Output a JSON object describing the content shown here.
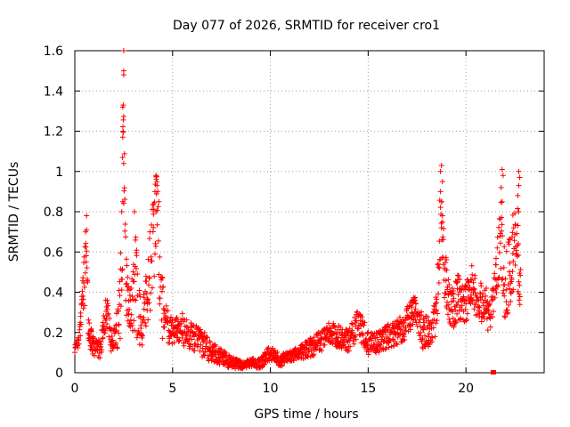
{
  "chart_data": {
    "type": "scatter",
    "title": "Day 077 of 2026, SRMTID for receiver cro1",
    "xlabel": "GPS time / hours",
    "ylabel": "SRMTID / TECUs",
    "xlim": [
      0,
      24
    ],
    "ylim": [
      0,
      1.6
    ],
    "xticks": [
      0,
      5,
      10,
      15,
      20
    ],
    "xtick_labels": [
      "0",
      "5",
      "10",
      "15",
      "20"
    ],
    "yticks": [
      0,
      0.2,
      0.4,
      0.6,
      0.8,
      1,
      1.2,
      1.4,
      1.6
    ],
    "ytick_labels": [
      "0",
      "0.2",
      "0.4",
      "0.6",
      "0.8",
      "1",
      "1.2",
      "1.4",
      "1.6"
    ],
    "grid": true,
    "marker": "+",
    "color": "#ff0000",
    "outlier": {
      "x": 21.4,
      "y": 0.0
    },
    "profile": [
      [
        0.0,
        0.12,
        0.04
      ],
      [
        0.2,
        0.14,
        0.05
      ],
      [
        0.4,
        0.4,
        0.1
      ],
      [
        0.5,
        0.45,
        0.15
      ],
      [
        0.6,
        0.6,
        0.2
      ],
      [
        0.7,
        0.2,
        0.08
      ],
      [
        1.0,
        0.12,
        0.04
      ],
      [
        1.3,
        0.12,
        0.05
      ],
      [
        1.6,
        0.3,
        0.1
      ],
      [
        1.9,
        0.15,
        0.06
      ],
      [
        2.2,
        0.22,
        0.1
      ],
      [
        2.4,
        0.5,
        0.3
      ],
      [
        2.5,
        1.2,
        0.4
      ],
      [
        2.6,
        0.5,
        0.2
      ],
      [
        2.8,
        0.3,
        0.1
      ],
      [
        3.1,
        0.45,
        0.25
      ],
      [
        3.4,
        0.2,
        0.1
      ],
      [
        3.7,
        0.38,
        0.15
      ],
      [
        4.0,
        0.6,
        0.3
      ],
      [
        4.2,
        0.85,
        0.15
      ],
      [
        4.4,
        0.35,
        0.2
      ],
      [
        4.6,
        0.25,
        0.1
      ],
      [
        5.0,
        0.2,
        0.07
      ],
      [
        5.5,
        0.22,
        0.08
      ],
      [
        6.0,
        0.17,
        0.07
      ],
      [
        6.5,
        0.15,
        0.07
      ],
      [
        7.0,
        0.1,
        0.05
      ],
      [
        7.5,
        0.08,
        0.04
      ],
      [
        8.0,
        0.05,
        0.03
      ],
      [
        8.5,
        0.04,
        0.02
      ],
      [
        9.0,
        0.05,
        0.02
      ],
      [
        9.5,
        0.05,
        0.03
      ],
      [
        10.0,
        0.1,
        0.04
      ],
      [
        10.5,
        0.06,
        0.03
      ],
      [
        11.0,
        0.08,
        0.03
      ],
      [
        11.5,
        0.1,
        0.03
      ],
      [
        12.0,
        0.12,
        0.05
      ],
      [
        12.5,
        0.15,
        0.06
      ],
      [
        13.0,
        0.2,
        0.05
      ],
      [
        13.5,
        0.18,
        0.06
      ],
      [
        14.0,
        0.16,
        0.06
      ],
      [
        14.5,
        0.25,
        0.08
      ],
      [
        15.0,
        0.15,
        0.06
      ],
      [
        15.5,
        0.15,
        0.05
      ],
      [
        16.0,
        0.18,
        0.06
      ],
      [
        16.5,
        0.2,
        0.06
      ],
      [
        17.0,
        0.25,
        0.08
      ],
      [
        17.4,
        0.32,
        0.08
      ],
      [
        17.8,
        0.2,
        0.08
      ],
      [
        18.2,
        0.2,
        0.08
      ],
      [
        18.5,
        0.3,
        0.1
      ],
      [
        18.7,
        0.8,
        0.2
      ],
      [
        18.9,
        0.5,
        0.15
      ],
      [
        19.2,
        0.3,
        0.1
      ],
      [
        19.6,
        0.38,
        0.12
      ],
      [
        20.0,
        0.35,
        0.1
      ],
      [
        20.3,
        0.45,
        0.1
      ],
      [
        20.6,
        0.35,
        0.1
      ],
      [
        21.0,
        0.35,
        0.1
      ],
      [
        21.2,
        0.25,
        0.08
      ],
      [
        21.5,
        0.45,
        0.1
      ],
      [
        21.8,
        0.75,
        0.25
      ],
      [
        22.0,
        0.4,
        0.15
      ],
      [
        22.3,
        0.55,
        0.2
      ],
      [
        22.6,
        0.75,
        0.25
      ],
      [
        22.7,
        0.45,
        0.15
      ]
    ]
  }
}
